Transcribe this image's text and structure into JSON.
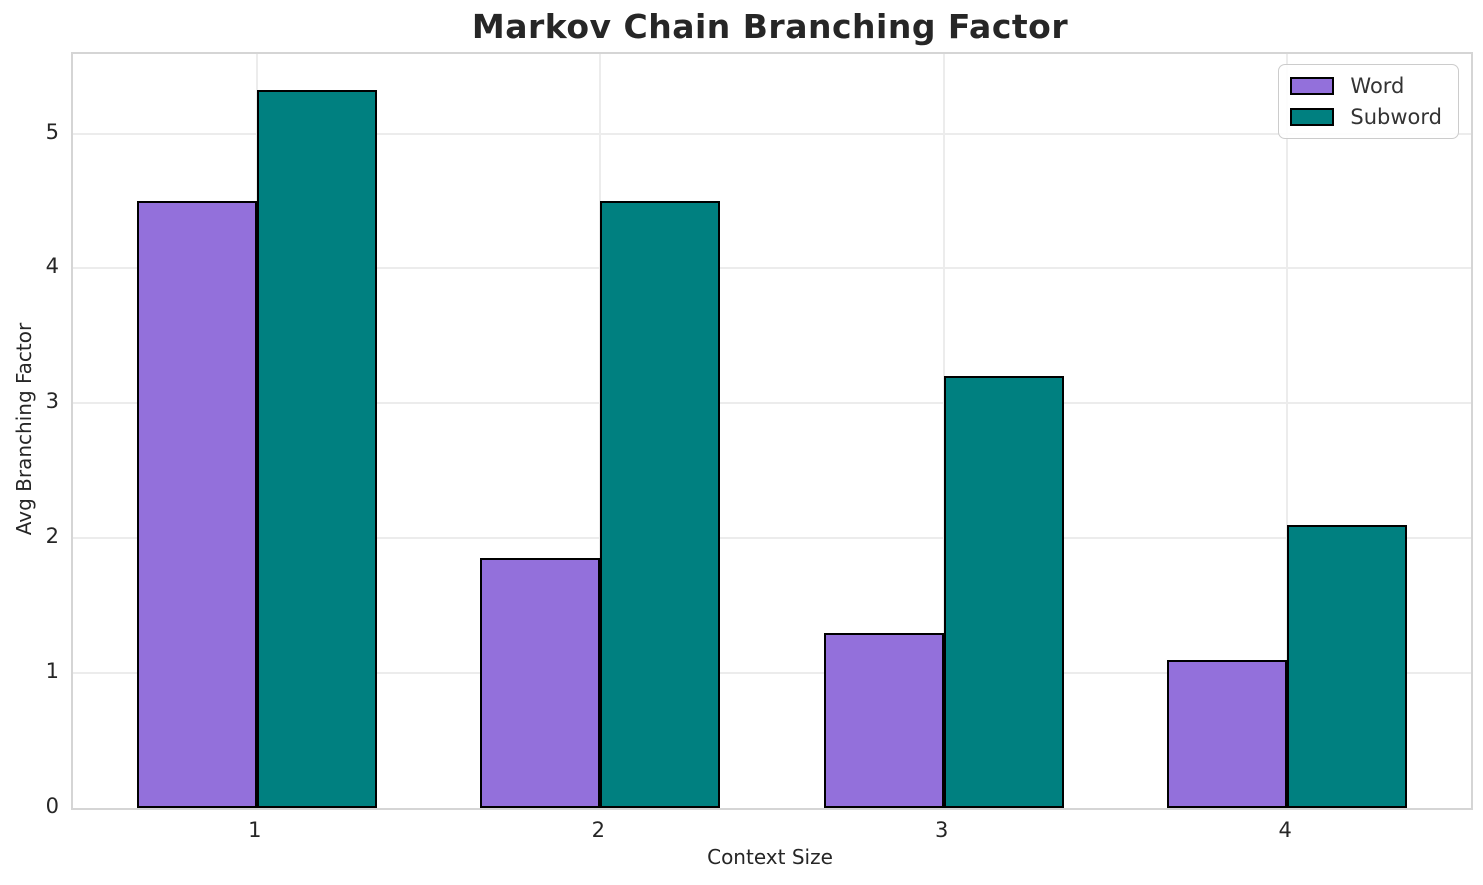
{
  "chart_data": {
    "type": "bar",
    "title": "Markov Chain Branching Factor",
    "xlabel": "Context Size",
    "ylabel": "Avg Branching Factor",
    "categories": [
      "1",
      "2",
      "3",
      "4"
    ],
    "series": [
      {
        "name": "Word",
        "color": "#9370DB",
        "values": [
          4.5,
          1.85,
          1.3,
          1.1
        ]
      },
      {
        "name": "Subword",
        "color": "#008080",
        "values": [
          5.32,
          4.5,
          3.2,
          2.1
        ]
      }
    ],
    "yticks": [
      "0",
      "1",
      "2",
      "3",
      "4",
      "5"
    ],
    "ylim": [
      0,
      5.59
    ],
    "bar_width": 0.35,
    "grid": true,
    "legend_position": "upper right",
    "colors": {
      "bar_edge": "#000000",
      "grid_line": "#ececec",
      "spine": "#d5d5d5",
      "text": "#262626",
      "background": "#ffffff"
    }
  }
}
